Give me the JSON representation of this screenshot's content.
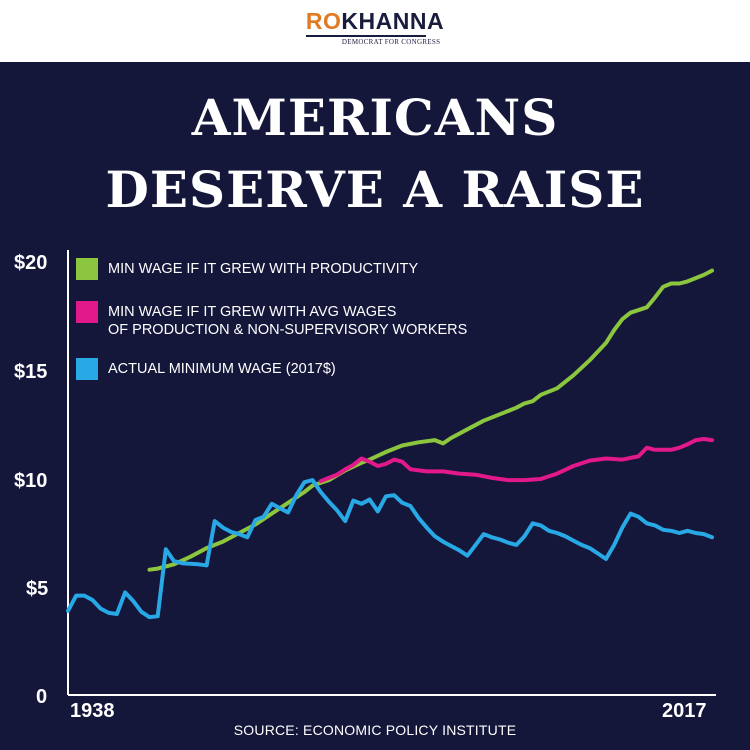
{
  "header": {
    "logo_ro": "RO",
    "logo_khanna": "KHANNA",
    "logo_subtitle": "DEMOCRAT FOR CONGRESS"
  },
  "headline": {
    "line1": "AMERICANS",
    "line2": "DESERVE A RAISE"
  },
  "source": "SOURCE: ECONOMIC POLICY INSTITUTE",
  "colors": {
    "background": "#14163a",
    "productivity": "#8cc63e",
    "avg_wages": "#e2198a",
    "actual": "#29a8e6",
    "logo_accent": "#e07a23"
  },
  "chart_data": {
    "type": "line",
    "xlabel": "",
    "ylabel": "",
    "xlim": [
      1938,
      2017
    ],
    "ylim": [
      0,
      20
    ],
    "x_tick_labels": [
      "1938",
      "2017"
    ],
    "y_ticks": [
      {
        "value": 20,
        "label": "$20"
      },
      {
        "value": 15,
        "label": "$15"
      },
      {
        "value": 10,
        "label": "$10"
      },
      {
        "value": 5,
        "label": "$5"
      },
      {
        "value": 0,
        "label": "0"
      }
    ],
    "grid": false,
    "legend": "top-left",
    "series": [
      {
        "key": "productivity",
        "name": "MIN WAGE IF IT GREW WITH PRODUCTIVITY",
        "color": "#8cc63e",
        "points": [
          [
            1948,
            5.8
          ],
          [
            1949,
            5.85
          ],
          [
            1951,
            6.05
          ],
          [
            1953,
            6.4
          ],
          [
            1955,
            6.8
          ],
          [
            1957,
            7.1
          ],
          [
            1959,
            7.5
          ],
          [
            1961,
            7.9
          ],
          [
            1963,
            8.4
          ],
          [
            1965,
            8.9
          ],
          [
            1967,
            9.4
          ],
          [
            1968,
            9.7
          ],
          [
            1970,
            9.95
          ],
          [
            1972,
            10.4
          ],
          [
            1974,
            10.75
          ],
          [
            1975,
            10.9
          ],
          [
            1977,
            11.25
          ],
          [
            1979,
            11.55
          ],
          [
            1981,
            11.7
          ],
          [
            1983,
            11.8
          ],
          [
            1984,
            11.65
          ],
          [
            1985,
            11.9
          ],
          [
            1987,
            12.3
          ],
          [
            1989,
            12.7
          ],
          [
            1991,
            13.0
          ],
          [
            1993,
            13.3
          ],
          [
            1994,
            13.5
          ],
          [
            1995,
            13.6
          ],
          [
            1996,
            13.9
          ],
          [
            1998,
            14.2
          ],
          [
            2000,
            14.8
          ],
          [
            2002,
            15.5
          ],
          [
            2004,
            16.3
          ],
          [
            2005,
            16.9
          ],
          [
            2006,
            17.4
          ],
          [
            2007,
            17.7
          ],
          [
            2009,
            17.95
          ],
          [
            2010,
            18.4
          ],
          [
            2011,
            18.9
          ],
          [
            2012,
            19.05
          ],
          [
            2013,
            19.05
          ],
          [
            2014,
            19.15
          ],
          [
            2015,
            19.3
          ],
          [
            2016,
            19.45
          ],
          [
            2017,
            19.65
          ]
        ]
      },
      {
        "key": "avg_wages",
        "name": "MIN WAGE IF IT GREW WITH AVG WAGES OF PRODUCTION & NON-SUPERVISORY WORKERS",
        "name_lines": [
          "MIN WAGE IF IT GREW WITH AVG WAGES",
          "OF PRODUCTION & NON-SUPERVISORY WORKERS"
        ],
        "color": "#e2198a",
        "points": [
          [
            1969,
            9.9
          ],
          [
            1970,
            10.05
          ],
          [
            1971,
            10.2
          ],
          [
            1972,
            10.45
          ],
          [
            1973,
            10.65
          ],
          [
            1974,
            10.95
          ],
          [
            1975,
            10.8
          ],
          [
            1976,
            10.6
          ],
          [
            1977,
            10.7
          ],
          [
            1978,
            10.9
          ],
          [
            1979,
            10.8
          ],
          [
            1980,
            10.45
          ],
          [
            1982,
            10.35
          ],
          [
            1984,
            10.35
          ],
          [
            1986,
            10.25
          ],
          [
            1988,
            10.2
          ],
          [
            1990,
            10.05
          ],
          [
            1992,
            9.95
          ],
          [
            1994,
            9.95
          ],
          [
            1996,
            10.0
          ],
          [
            1998,
            10.25
          ],
          [
            2000,
            10.6
          ],
          [
            2002,
            10.85
          ],
          [
            2004,
            10.95
          ],
          [
            2006,
            10.9
          ],
          [
            2008,
            11.05
          ],
          [
            2009,
            11.45
          ],
          [
            2010,
            11.35
          ],
          [
            2011,
            11.35
          ],
          [
            2012,
            11.35
          ],
          [
            2013,
            11.45
          ],
          [
            2014,
            11.6
          ],
          [
            2015,
            11.8
          ],
          [
            2016,
            11.85
          ],
          [
            2017,
            11.8
          ]
        ]
      },
      {
        "key": "actual",
        "name": "ACTUAL MINIMUM WAGE (2017$)",
        "color": "#29a8e6",
        "points": [
          [
            1938,
            3.9
          ],
          [
            1939,
            4.6
          ],
          [
            1940,
            4.6
          ],
          [
            1941,
            4.4
          ],
          [
            1942,
            4.0
          ],
          [
            1943,
            3.8
          ],
          [
            1944,
            3.75
          ],
          [
            1945,
            4.75
          ],
          [
            1946,
            4.35
          ],
          [
            1947,
            3.85
          ],
          [
            1948,
            3.6
          ],
          [
            1949,
            3.65
          ],
          [
            1950,
            6.75
          ],
          [
            1951,
            6.2
          ],
          [
            1952,
            6.1
          ],
          [
            1954,
            6.05
          ],
          [
            1955,
            6.0
          ],
          [
            1956,
            8.05
          ],
          [
            1957,
            7.75
          ],
          [
            1958,
            7.55
          ],
          [
            1959,
            7.45
          ],
          [
            1960,
            7.3
          ],
          [
            1961,
            8.1
          ],
          [
            1962,
            8.25
          ],
          [
            1963,
            8.85
          ],
          [
            1964,
            8.65
          ],
          [
            1965,
            8.45
          ],
          [
            1966,
            9.25
          ],
          [
            1967,
            9.85
          ],
          [
            1968,
            9.95
          ],
          [
            1969,
            9.4
          ],
          [
            1970,
            8.95
          ],
          [
            1971,
            8.55
          ],
          [
            1972,
            8.05
          ],
          [
            1973,
            9.0
          ],
          [
            1974,
            8.85
          ],
          [
            1975,
            9.05
          ],
          [
            1976,
            8.5
          ],
          [
            1977,
            9.2
          ],
          [
            1978,
            9.25
          ],
          [
            1979,
            8.9
          ],
          [
            1980,
            8.75
          ],
          [
            1981,
            8.2
          ],
          [
            1982,
            7.75
          ],
          [
            1983,
            7.35
          ],
          [
            1984,
            7.1
          ],
          [
            1985,
            6.9
          ],
          [
            1986,
            6.7
          ],
          [
            1987,
            6.45
          ],
          [
            1988,
            6.95
          ],
          [
            1989,
            7.45
          ],
          [
            1990,
            7.3
          ],
          [
            1991,
            7.2
          ],
          [
            1992,
            7.05
          ],
          [
            1993,
            6.95
          ],
          [
            1994,
            7.35
          ],
          [
            1995,
            7.95
          ],
          [
            1996,
            7.85
          ],
          [
            1997,
            7.6
          ],
          [
            1998,
            7.5
          ],
          [
            1999,
            7.35
          ],
          [
            2000,
            7.15
          ],
          [
            2001,
            6.95
          ],
          [
            2002,
            6.8
          ],
          [
            2003,
            6.55
          ],
          [
            2004,
            6.3
          ],
          [
            2005,
            6.95
          ],
          [
            2006,
            7.75
          ],
          [
            2007,
            8.4
          ],
          [
            2008,
            8.25
          ],
          [
            2009,
            7.95
          ],
          [
            2010,
            7.85
          ],
          [
            2011,
            7.65
          ],
          [
            2012,
            7.6
          ],
          [
            2013,
            7.5
          ],
          [
            2014,
            7.6
          ],
          [
            2015,
            7.5
          ],
          [
            2016,
            7.45
          ],
          [
            2017,
            7.3
          ]
        ]
      }
    ]
  }
}
